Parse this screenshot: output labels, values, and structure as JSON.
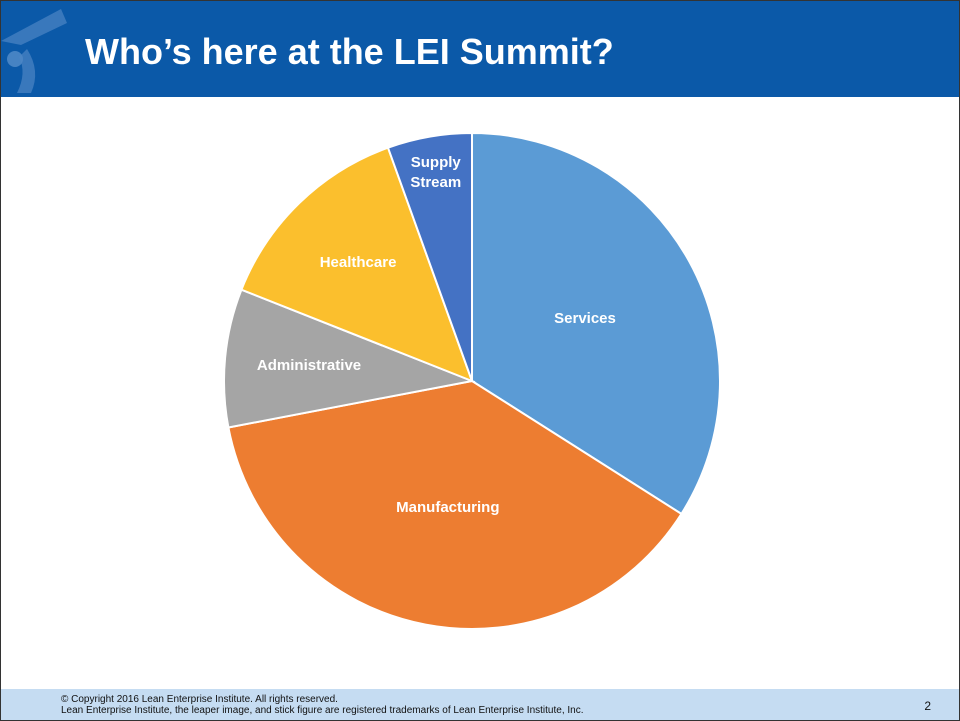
{
  "chart_data": {
    "type": "pie",
    "title": "Who’s here at the LEI Summit?",
    "categories": [
      "Services",
      "Manufacturing",
      "Administrative",
      "Healthcare",
      "Supply Stream"
    ],
    "values": [
      34,
      38,
      9,
      13.5,
      5.5
    ],
    "colors": [
      "#5b9bd5",
      "#ed7d31",
      "#a5a5a5",
      "#fbbf2d",
      "#4472c4"
    ]
  },
  "footer": {
    "copyright": "© Copyright 2016 Lean Enterprise Institute. All rights reserved.",
    "trademark": "Lean Enterprise Institute, the leaper image, and stick figure are registered trademarks of Lean Enterprise Institute, Inc.",
    "page_number": "2"
  }
}
